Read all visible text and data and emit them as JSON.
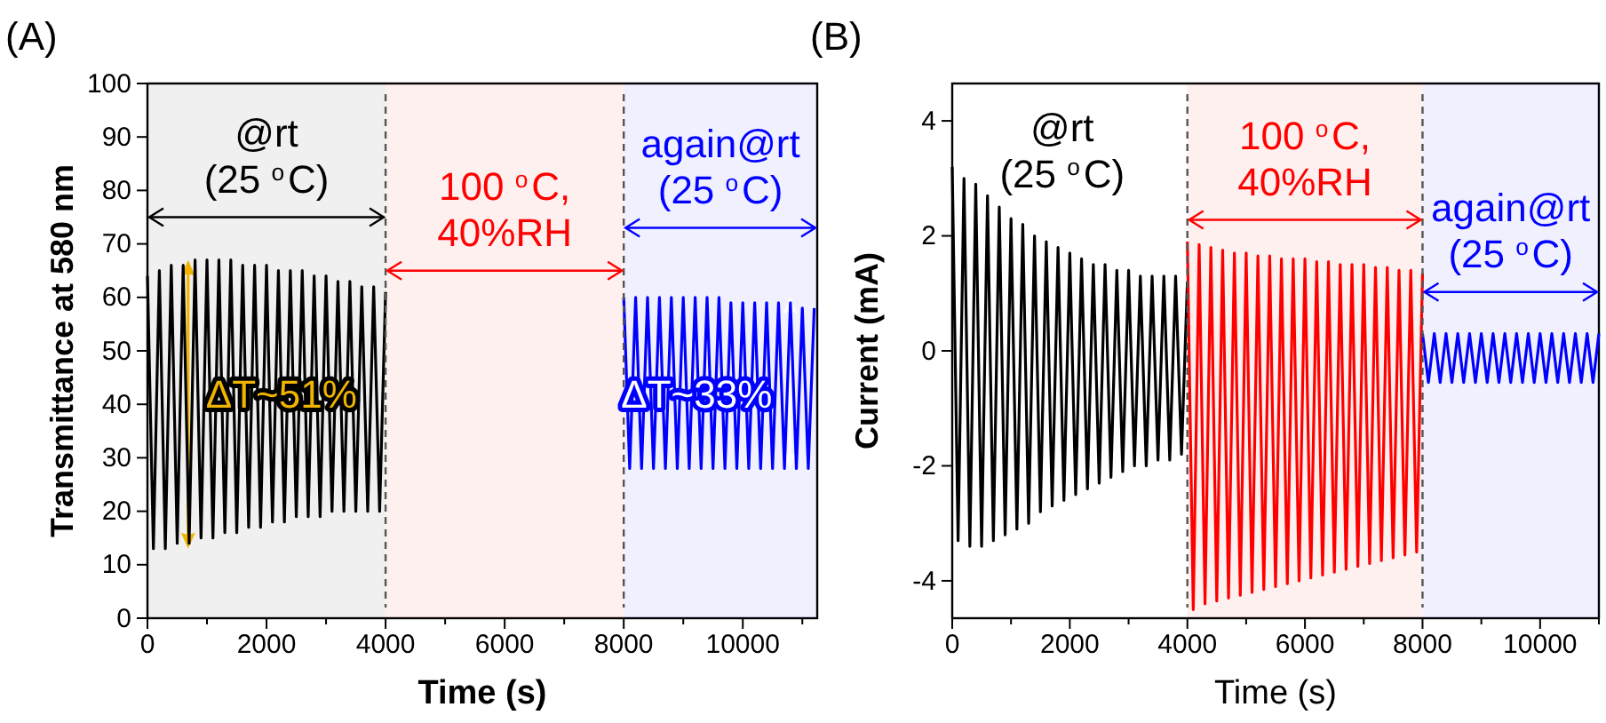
{
  "chart_data": [
    {
      "type": "line",
      "title": "(A)",
      "xlabel": "Time (s)",
      "ylabel": "Transmittance at 580 nm",
      "xlim": [
        0,
        11250
      ],
      "ylim": [
        0,
        100
      ],
      "xticks": [
        0,
        {
          "value": 1000,
          "label": null
        },
        2000,
        {
          "value": 3000,
          "label": null
        },
        4000,
        {
          "value": 5000,
          "label": null
        },
        6000,
        {
          "value": 7000,
          "label": null
        },
        8000,
        {
          "value": 9000,
          "label": null
        },
        10000,
        {
          "value": 11000,
          "label": null
        }
      ],
      "yticks": [
        0,
        10,
        20,
        30,
        40,
        50,
        60,
        70,
        80,
        90,
        100
      ],
      "series": [
        {
          "color": "#000000",
          "x": [
            0,
            100,
            200,
            300,
            400,
            500,
            600,
            700,
            800,
            900,
            1000,
            1100,
            1200,
            1300,
            1400,
            1500,
            1600,
            1700,
            1800,
            1900,
            2000,
            2100,
            2200,
            2300,
            2400,
            2500,
            2600,
            2700,
            2800,
            2900,
            3000,
            3100,
            3200,
            3300,
            3400,
            3500,
            3600,
            3700,
            3800,
            3900,
            4000
          ],
          "values": [
            64,
            13,
            65,
            13,
            66,
            14,
            66,
            14,
            67,
            15,
            67,
            15,
            67,
            16,
            67,
            16,
            66,
            17,
            66,
            17,
            66,
            18,
            65,
            18,
            65,
            19,
            65,
            19,
            64,
            19,
            64,
            20,
            63,
            20,
            63,
            20,
            62,
            20,
            62,
            20,
            61
          ]
        },
        {
          "color": "#0000ff",
          "x": [
            8000,
            8100,
            8200,
            8300,
            8400,
            8500,
            8600,
            8700,
            8800,
            8900,
            9000,
            9100,
            9200,
            9300,
            9400,
            9500,
            9600,
            9700,
            9800,
            9900,
            10000,
            10100,
            10200,
            10300,
            10400,
            10500,
            10600,
            10700,
            10800,
            10900,
            11000,
            11100,
            11200
          ],
          "values": [
            60,
            28,
            60,
            28,
            60,
            28,
            60,
            28,
            60,
            28,
            60,
            28,
            60,
            28,
            60,
            28,
            60,
            28,
            59,
            28,
            59,
            28,
            59,
            28,
            59,
            28,
            59,
            28,
            59,
            28,
            58,
            28,
            58
          ]
        }
      ],
      "ref_lines": [
        {
          "axis": "x",
          "value": 4000,
          "color": "#555555",
          "line_style": "dashed"
        },
        {
          "axis": "x",
          "value": 8000,
          "color": "#555555",
          "line_style": "dashed"
        }
      ],
      "bands": [
        {
          "axis": "x",
          "from": 0,
          "to": 4000,
          "label": "@rt\n(25 $^{o}$C)",
          "color": "#000000"
        },
        {
          "axis": "x",
          "from": 4000,
          "to": 8000,
          "label": "100 $^{o}$C,\n40%RH",
          "color": "#ff0000"
        },
        {
          "axis": "x",
          "from": 8000,
          "to": 11250,
          "label": "again@rt\n(25 $^{o}$C)",
          "color": "#0000ff"
        }
      ],
      "annotations": [
        "ΔT~51%",
        "ΔT~33%"
      ]
    },
    {
      "type": "line",
      "title": "(B)",
      "xlabel": "Time (s)",
      "ylabel": "Current (mA)",
      "xlim": [
        0,
        11000
      ],
      "ylim": [
        -4.65,
        4.65
      ],
      "xticks": [
        0,
        {
          "value": 1000,
          "label": null
        },
        2000,
        {
          "value": 3000,
          "label": null
        },
        4000,
        {
          "value": 5000,
          "label": null
        },
        6000,
        {
          "value": 7000,
          "label": null
        },
        8000,
        {
          "value": 9000,
          "label": null
        },
        10000,
        {
          "value": 11000,
          "label": null
        }
      ],
      "yticks": [
        -4,
        -2,
        0,
        2,
        4
      ],
      "series": [
        {
          "color": "#000000",
          "x": [
            0,
            100,
            200,
            300,
            400,
            500,
            600,
            700,
            800,
            900,
            1000,
            1100,
            1200,
            1300,
            1400,
            1500,
            1600,
            1700,
            1800,
            1900,
            2000,
            2100,
            2200,
            2300,
            2400,
            2500,
            2600,
            2700,
            2800,
            2900,
            3000,
            3100,
            3200,
            3300,
            3400,
            3500,
            3600,
            3700,
            3800,
            3900,
            4000
          ],
          "values": [
            3.2,
            -3.3,
            3.0,
            -3.4,
            2.9,
            -3.4,
            2.7,
            -3.3,
            2.5,
            -3.2,
            2.3,
            -3.1,
            2.2,
            -3.0,
            2.0,
            -2.8,
            1.9,
            -2.7,
            1.8,
            -2.6,
            1.7,
            -2.5,
            1.6,
            -2.4,
            1.5,
            -2.3,
            1.5,
            -2.2,
            1.4,
            -2.1,
            1.4,
            -2.0,
            1.3,
            -2.0,
            1.3,
            -1.9,
            1.3,
            -1.9,
            1.3,
            -1.8,
            1.2
          ]
        },
        {
          "color": "#ff0000",
          "x": [
            4000,
            4100,
            4200,
            4300,
            4400,
            4500,
            4600,
            4700,
            4800,
            4900,
            5000,
            5100,
            5200,
            5300,
            5400,
            5500,
            5600,
            5700,
            5800,
            5900,
            6000,
            6100,
            6200,
            6300,
            6400,
            6500,
            6600,
            6700,
            6800,
            6900,
            7000,
            7100,
            7200,
            7300,
            7400,
            7500,
            7600,
            7700,
            7800,
            7900,
            8000
          ],
          "values": [
            1.9,
            -4.5,
            1.85,
            -4.4,
            1.8,
            -4.35,
            1.75,
            -4.3,
            1.7,
            -4.25,
            1.7,
            -4.2,
            1.65,
            -4.15,
            1.65,
            -4.1,
            1.6,
            -4.05,
            1.6,
            -4.0,
            1.6,
            -3.95,
            1.55,
            -3.9,
            1.55,
            -3.85,
            1.5,
            -3.8,
            1.5,
            -3.75,
            1.5,
            -3.7,
            1.45,
            -3.65,
            1.45,
            -3.6,
            1.4,
            -3.55,
            1.4,
            -3.5,
            1.35
          ]
        },
        {
          "color": "#0000ff",
          "x": [
            8000,
            8100,
            8200,
            8300,
            8400,
            8500,
            8600,
            8700,
            8800,
            8900,
            9000,
            9100,
            9200,
            9300,
            9400,
            9500,
            9600,
            9700,
            9800,
            9900,
            10000,
            10100,
            10200,
            10300,
            10400,
            10500,
            10600,
            10700,
            10800,
            10900,
            11000
          ],
          "values": [
            0.3,
            -0.55,
            0.3,
            -0.55,
            0.3,
            -0.55,
            0.3,
            -0.55,
            0.3,
            -0.55,
            0.3,
            -0.55,
            0.3,
            -0.55,
            0.3,
            -0.55,
            0.3,
            -0.55,
            0.3,
            -0.55,
            0.3,
            -0.55,
            0.3,
            -0.55,
            0.3,
            -0.55,
            0.3,
            -0.55,
            0.3,
            -0.55,
            0.3
          ]
        }
      ],
      "ref_lines": [
        {
          "axis": "x",
          "value": 4000,
          "color": "#555555",
          "line_style": "dashed"
        },
        {
          "axis": "x",
          "value": 8000,
          "color": "#555555",
          "line_style": "dashed"
        }
      ],
      "bands": [
        {
          "axis": "x",
          "from": 4000,
          "to": 8000,
          "label": "100 $^{o}$C,\n40%RH",
          "color": "#ff0000"
        },
        {
          "axis": "x",
          "from": 8000,
          "to": 11000,
          "label": "again@rt\n(25 $^{o}$C)",
          "color": "#0000ff"
        }
      ],
      "annotations": [
        "@rt\n(25 $^{o}$C)"
      ]
    }
  ]
}
